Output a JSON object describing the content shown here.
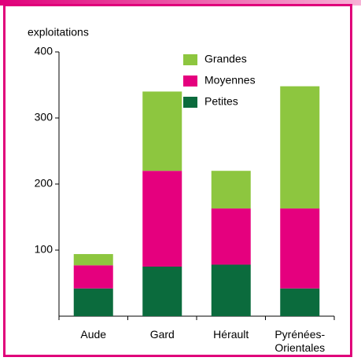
{
  "chart_data": {
    "type": "stacked_bar",
    "y_label": "exploitations",
    "categories": [
      "Aude",
      "Gard",
      "Hérault",
      "Pyrénées-Orientales"
    ],
    "series": [
      {
        "name": "Petites",
        "color": "#0b6b3d",
        "values": [
          42,
          75,
          78,
          42
        ]
      },
      {
        "name": "Moyennes",
        "color": "#e5007e",
        "values": [
          35,
          145,
          85,
          121
        ]
      },
      {
        "name": "Grandes",
        "color": "#8dc63f",
        "values": [
          17,
          120,
          57,
          185
        ]
      }
    ],
    "ylim": [
      0,
      400
    ],
    "yticks": [
      100,
      200,
      300,
      400
    ],
    "grid": false
  }
}
